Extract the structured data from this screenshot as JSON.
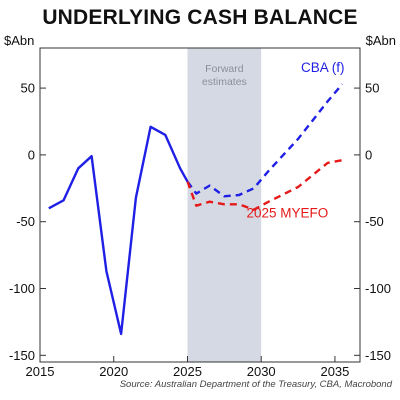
{
  "chart_data": {
    "type": "line",
    "title": "UNDERLYING CASH BALANCE",
    "ylabel_left": "$Abn",
    "ylabel_right": "$Abn",
    "xlim": [
      2015,
      2036.7
    ],
    "ylim": [
      -155,
      80
    ],
    "x_ticks": [
      2015,
      2020,
      2025,
      2030,
      2035
    ],
    "y_ticks": [
      50,
      0,
      -50,
      -100,
      -150
    ],
    "tick_labels": {
      "x": [
        "2015",
        "2020",
        "2025",
        "2030",
        "2035"
      ],
      "y": [
        "50",
        "0",
        "-50",
        "-100",
        "-150"
      ]
    },
    "grid": false,
    "shaded_region": {
      "x": [
        2025,
        2030
      ],
      "label": "Forward\nestimates",
      "color": "#d5d9e3"
    },
    "series": [
      {
        "name": "",
        "style": "solid",
        "color": "#1f1fe6",
        "points": [
          [
            2015.6,
            -40
          ],
          [
            2016.6,
            -34
          ],
          [
            2017.6,
            -10
          ],
          [
            2018.5,
            -1
          ],
          [
            2019.5,
            -87
          ],
          [
            2020.5,
            -134
          ],
          [
            2021.5,
            -32
          ],
          [
            2022.5,
            21
          ],
          [
            2023.5,
            15
          ],
          [
            2024.5,
            -10
          ],
          [
            2025.0,
            -20
          ]
        ]
      },
      {
        "name": "CBA (f)",
        "style": "dashed",
        "color": "#1f1fe6",
        "points": [
          [
            2025.0,
            -20
          ],
          [
            2025.6,
            -29
          ],
          [
            2026.5,
            -23
          ],
          [
            2027.5,
            -31
          ],
          [
            2028.5,
            -30
          ],
          [
            2029.5,
            -25
          ],
          [
            2030.5,
            -12
          ],
          [
            2032.5,
            12
          ],
          [
            2034.5,
            40
          ],
          [
            2035.5,
            53
          ]
        ]
      },
      {
        "name": "2025 MYEFO",
        "style": "dashed",
        "color": "#e41a1a",
        "points": [
          [
            2025.0,
            -20
          ],
          [
            2025.6,
            -38
          ],
          [
            2026.5,
            -35
          ],
          [
            2027.5,
            -37
          ],
          [
            2028.5,
            -37
          ],
          [
            2029.5,
            -41
          ],
          [
            2030.5,
            -35
          ],
          [
            2032.5,
            -24
          ],
          [
            2034.5,
            -6
          ],
          [
            2035.5,
            -4
          ]
        ]
      }
    ],
    "labels": [
      {
        "text": "CBA (f)",
        "series": 1
      },
      {
        "text": "2025 MYEFO",
        "series": 2
      }
    ],
    "source": "Source: Australian Department of the Treasury, CBA, Macrobond"
  }
}
